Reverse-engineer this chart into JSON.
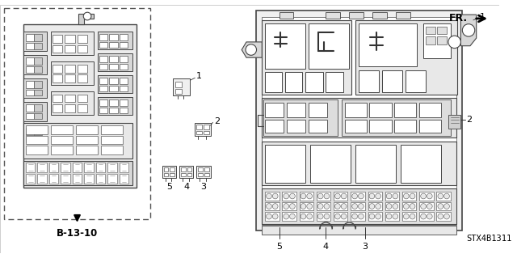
{
  "bg_color": "#ffffff",
  "fig_width": 6.4,
  "fig_height": 3.19,
  "dpi": 100,
  "b_ref": "B-13-10",
  "part_code": "STX4B1311",
  "fr_label": "FR.",
  "gray1": "#d8d8d8",
  "gray2": "#e8e8e8",
  "gray3": "#c0c0c0",
  "gray4": "#b0b0b0",
  "lc": "#333333"
}
